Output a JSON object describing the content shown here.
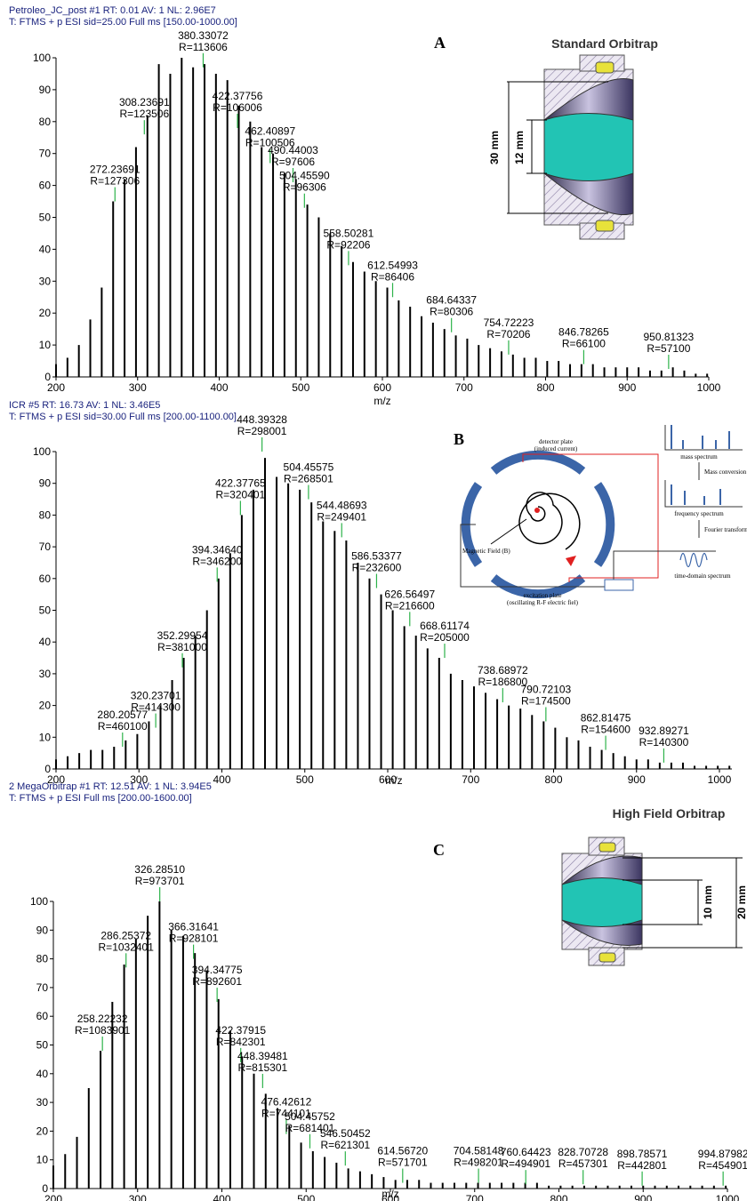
{
  "chart_data": [
    {
      "type": "stick",
      "header": [
        "Petroleo_JC_post #1  RT: 0.01  AV: 1  NL: 2.96E7",
        "T: FTMS + p ESI sid=25.00  Full ms [150.00-1000.00]"
      ],
      "xlabel": "m/z",
      "xlim": [
        200,
        1000
      ],
      "ylim": [
        0,
        100
      ],
      "xticks": [
        200,
        300,
        400,
        500,
        600,
        700,
        800,
        900,
        1000
      ],
      "yticks": [
        0,
        10,
        20,
        30,
        40,
        50,
        60,
        70,
        80,
        90,
        100
      ],
      "color": "#000000",
      "annotation_color": "#2db34a",
      "x": [
        200,
        214,
        228,
        242,
        256,
        270,
        284,
        298,
        312,
        326,
        340,
        354,
        368,
        382,
        396,
        410,
        424,
        438,
        452,
        466,
        480,
        494,
        508,
        522,
        536,
        550,
        564,
        578,
        592,
        606,
        620,
        634,
        648,
        662,
        676,
        690,
        704,
        718,
        732,
        746,
        760,
        774,
        788,
        802,
        816,
        830,
        844,
        858,
        872,
        886,
        900,
        914,
        928,
        942,
        956,
        970,
        984,
        998
      ],
      "values": [
        4,
        6,
        10,
        18,
        28,
        55,
        62,
        72,
        82,
        98,
        95,
        100,
        97,
        98,
        95,
        93,
        85,
        80,
        72,
        70,
        64,
        62,
        54,
        50,
        45,
        41,
        36,
        33,
        30,
        28,
        24,
        22,
        19,
        17,
        15,
        13,
        12,
        10,
        9,
        8,
        7,
        6,
        6,
        5,
        5,
        4,
        4,
        4,
        3,
        3,
        3,
        3,
        2,
        2,
        3,
        2,
        1,
        1
      ],
      "annotations": [
        {
          "x": 272.23691,
          "label": "272.23691",
          "r": "R=127306",
          "y": 55
        },
        {
          "x": 308.23691,
          "label": "308.23691",
          "r": "R=123506",
          "y": 76
        },
        {
          "x": 380.33072,
          "label": "380.33072",
          "r": "R=113606",
          "y": 97
        },
        {
          "x": 422.37756,
          "label": "422.37756",
          "r": "R=106006",
          "y": 78
        },
        {
          "x": 462.40897,
          "label": "462.40897",
          "r": "R=100506",
          "y": 67
        },
        {
          "x": 490.44003,
          "label": "490.44003",
          "r": "R=97606",
          "y": 61
        },
        {
          "x": 504.4559,
          "label": "504.45590",
          "r": "R=96306",
          "y": 53
        },
        {
          "x": 558.50281,
          "label": "558.50281",
          "r": "R=92206",
          "y": 35
        },
        {
          "x": 612.54993,
          "label": "612.54993",
          "r": "R=86406",
          "y": 25
        },
        {
          "x": 684.64337,
          "label": "684.64337",
          "r": "R=80306",
          "y": 14
        },
        {
          "x": 754.72223,
          "label": "754.72223",
          "r": "R=70206",
          "y": 7
        },
        {
          "x": 846.78265,
          "label": "846.78265",
          "r": "R=66100",
          "y": 4
        },
        {
          "x": 950.81323,
          "label": "950.81323",
          "r": "R=57100",
          "y": 2.5
        }
      ]
    },
    {
      "type": "stick",
      "header": [
        "ICR #5  RT: 16.73  AV: 1  NL: 3.46E5",
        "T: FTMS + p ESI sid=30.00  Full ms [200.00-1100.00]"
      ],
      "xlabel": "m/z",
      "xlim": [
        200,
        1015
      ],
      "ylim": [
        0,
        100
      ],
      "xticks": [
        200,
        300,
        400,
        500,
        600,
        700,
        800,
        900,
        1000
      ],
      "yticks": [
        0,
        10,
        20,
        30,
        40,
        50,
        60,
        70,
        80,
        90,
        100
      ],
      "color": "#000000",
      "annotation_color": "#2db34a",
      "x": [
        200,
        214,
        228,
        242,
        256,
        270,
        284,
        298,
        312,
        326,
        340,
        354,
        368,
        382,
        396,
        410,
        424,
        438,
        452,
        466,
        480,
        494,
        508,
        522,
        536,
        550,
        564,
        578,
        592,
        606,
        620,
        634,
        648,
        662,
        676,
        690,
        704,
        718,
        732,
        746,
        760,
        774,
        788,
        802,
        816,
        830,
        844,
        858,
        872,
        886,
        900,
        914,
        928,
        942,
        956,
        970,
        984,
        998,
        1012
      ],
      "values": [
        3,
        4,
        5,
        6,
        6,
        7,
        9,
        11,
        15,
        20,
        28,
        35,
        42,
        50,
        60,
        68,
        80,
        88,
        98,
        92,
        90,
        88,
        84,
        78,
        75,
        72,
        65,
        60,
        55,
        50,
        45,
        42,
        38,
        35,
        30,
        28,
        26,
        24,
        22,
        20,
        19,
        17,
        15,
        13,
        10,
        9,
        7,
        6,
        5,
        4,
        3,
        3,
        2,
        2,
        2,
        1,
        1,
        1,
        1
      ],
      "annotations": [
        {
          "x": 280.20577,
          "label": "280.20577",
          "r": "R=460100",
          "y": 7
        },
        {
          "x": 320.23701,
          "label": "320.23701",
          "r": "R=414300",
          "y": 13
        },
        {
          "x": 352.29954,
          "label": "352.29954",
          "r": "R=381000",
          "y": 32
        },
        {
          "x": 394.3464,
          "label": "394.34640",
          "r": "R=346200",
          "y": 59
        },
        {
          "x": 422.37765,
          "label": "422.37765",
          "r": "R=320401",
          "y": 80
        },
        {
          "x": 448.39328,
          "label": "448.39328",
          "r": "R=298001",
          "y": 100
        },
        {
          "x": 504.45575,
          "label": "504.45575",
          "r": "R=268501",
          "y": 85
        },
        {
          "x": 544.48693,
          "label": "544.48693",
          "r": "R=249401",
          "y": 73
        },
        {
          "x": 586.53377,
          "label": "586.53377",
          "r": "R=232600",
          "y": 57
        },
        {
          "x": 626.56497,
          "label": "626.56497",
          "r": "R=216600",
          "y": 45
        },
        {
          "x": 668.61174,
          "label": "668.61174",
          "r": "R=205000",
          "y": 35
        },
        {
          "x": 738.68972,
          "label": "738.68972",
          "r": "R=186800",
          "y": 21
        },
        {
          "x": 790.72103,
          "label": "790.72103",
          "r": "R=174500",
          "y": 15
        },
        {
          "x": 862.81475,
          "label": "862.81475",
          "r": "R=154600",
          "y": 6
        },
        {
          "x": 932.89271,
          "label": "932.89271",
          "r": "R=140300",
          "y": 2
        }
      ]
    },
    {
      "type": "stick",
      "header": [
        "2 MegaOrbitrap #1  RT: 12.51  AV: 1  NL: 3.94E5",
        "T: FTMS + p ESI Full ms [200.00-1600.00]"
      ],
      "xlabel": "m/z",
      "xlim": [
        200,
        1000
      ],
      "ylim": [
        0,
        100
      ],
      "xticks": [
        200,
        300,
        400,
        500,
        600,
        700,
        800,
        900,
        1000
      ],
      "yticks": [
        0,
        10,
        20,
        30,
        40,
        50,
        60,
        70,
        80,
        90,
        100
      ],
      "color": "#000000",
      "annotation_color": "#2db34a",
      "x": [
        200,
        214,
        228,
        242,
        256,
        270,
        284,
        298,
        312,
        326,
        340,
        354,
        368,
        382,
        396,
        410,
        424,
        438,
        452,
        466,
        480,
        494,
        508,
        522,
        536,
        550,
        564,
        578,
        592,
        606,
        620,
        634,
        648,
        662,
        676,
        690,
        704,
        718,
        732,
        746,
        760,
        774,
        788,
        802,
        816,
        830,
        844,
        858,
        872,
        886,
        900,
        914,
        928,
        942,
        956,
        970,
        984,
        998
      ],
      "values": [
        8,
        12,
        18,
        35,
        48,
        65,
        78,
        87,
        95,
        100,
        90,
        88,
        82,
        76,
        66,
        55,
        46,
        40,
        33,
        28,
        22,
        16,
        13,
        11,
        9,
        7,
        6,
        5,
        4,
        3,
        3,
        3,
        2,
        2,
        2,
        2,
        2,
        2,
        2,
        2,
        2,
        2,
        1,
        1,
        1,
        1,
        1,
        1,
        1,
        1,
        1,
        1,
        1,
        1,
        1,
        1,
        1,
        1
      ],
      "annotations": [
        {
          "x": 258.22232,
          "label": "258.22232",
          "r": "R=1083901",
          "y": 48
        },
        {
          "x": 286.25372,
          "label": "286.25372",
          "r": "R=1032401",
          "y": 77
        },
        {
          "x": 326.2851,
          "label": "326.28510",
          "r": "R=973701",
          "y": 100
        },
        {
          "x": 366.31641,
          "label": "366.31641",
          "r": "R=928101",
          "y": 80
        },
        {
          "x": 394.34775,
          "label": "394.34775",
          "r": "R=892601",
          "y": 65
        },
        {
          "x": 422.37915,
          "label": "422.37915",
          "r": "R=842301",
          "y": 44
        },
        {
          "x": 448.39481,
          "label": "448.39481",
          "r": "R=815301",
          "y": 35
        },
        {
          "x": 476.42612,
          "label": "476.42612",
          "r": "R=744101",
          "y": 19
        },
        {
          "x": 504.45752,
          "label": "504.45752",
          "r": "R=681401",
          "y": 14
        },
        {
          "x": 546.50452,
          "label": "546.50452",
          "r": "R=621301",
          "y": 8
        },
        {
          "x": 614.5672,
          "label": "614.56720",
          "r": "R=571701",
          "y": 2
        },
        {
          "x": 704.58148,
          "label": "704.58148",
          "r": "R=498201",
          "y": 2
        },
        {
          "x": 760.64423,
          "label": "760.64423",
          "r": "R=494901",
          "y": 1.5
        },
        {
          "x": 828.70728,
          "label": "828.70728",
          "r": "R=457301",
          "y": 1.5
        },
        {
          "x": 898.78571,
          "label": "898.78571",
          "r": "R=442801",
          "y": 1
        },
        {
          "x": 994.87982,
          "label": "994.87982",
          "r": "R=454901",
          "y": 1
        }
      ]
    }
  ],
  "diagrams": {
    "A": {
      "letter": "A",
      "title": "Standard Orbitrap",
      "outer": "30 mm",
      "inner": "12 mm"
    },
    "B": {
      "letter": "B",
      "detector": [
        "detector plate",
        "(induced current)"
      ],
      "mass": "mass spectrum",
      "conversion": "Mass conversion",
      "frequency": "frequency spectrum",
      "fourier": "Fourier transformation",
      "time": "time-domain spectrum",
      "field": "Magnetic Field (B)",
      "excitation": [
        "excitation plate",
        "(oscillating R-F electric fiel)"
      ]
    },
    "C": {
      "letter": "C",
      "title": "High Field Orbitrap",
      "inner": "10 mm",
      "outer": "20 mm"
    }
  }
}
